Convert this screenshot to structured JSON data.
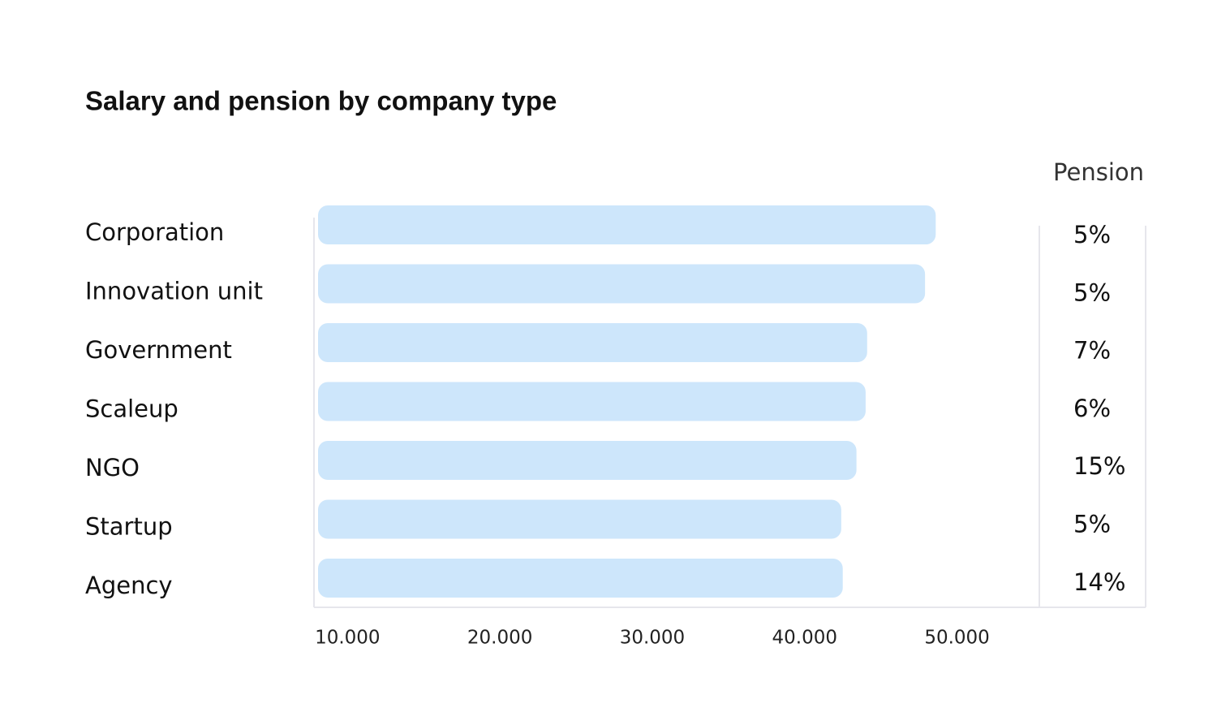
{
  "chart_data": {
    "type": "hbar",
    "title": "Salary and pension by company type",
    "categories": [
      "Corporation",
      "Innovation unit",
      "Government",
      "Scaleup",
      "NGO",
      "Startup",
      "Agency"
    ],
    "values": [
      48600,
      47900,
      44100,
      44000,
      43400,
      42400,
      42500
    ],
    "color": "#cde6fb",
    "xlim": [
      7800,
      55400
    ],
    "xticks": [
      {
        "value": 10000,
        "label": "10.000"
      },
      {
        "value": 20000,
        "label": "20.000"
      },
      {
        "value": 30000,
        "label": "30.000"
      },
      {
        "value": 40000,
        "label": "40.000"
      },
      {
        "value": 50000,
        "label": "50.000"
      }
    ],
    "pension": {
      "header": "Pension",
      "values": [
        5,
        5,
        7,
        6,
        15,
        5,
        14
      ],
      "value_labels": [
        "5%",
        "5%",
        "7%",
        "6%",
        "15%",
        "5%",
        "14%"
      ]
    }
  }
}
